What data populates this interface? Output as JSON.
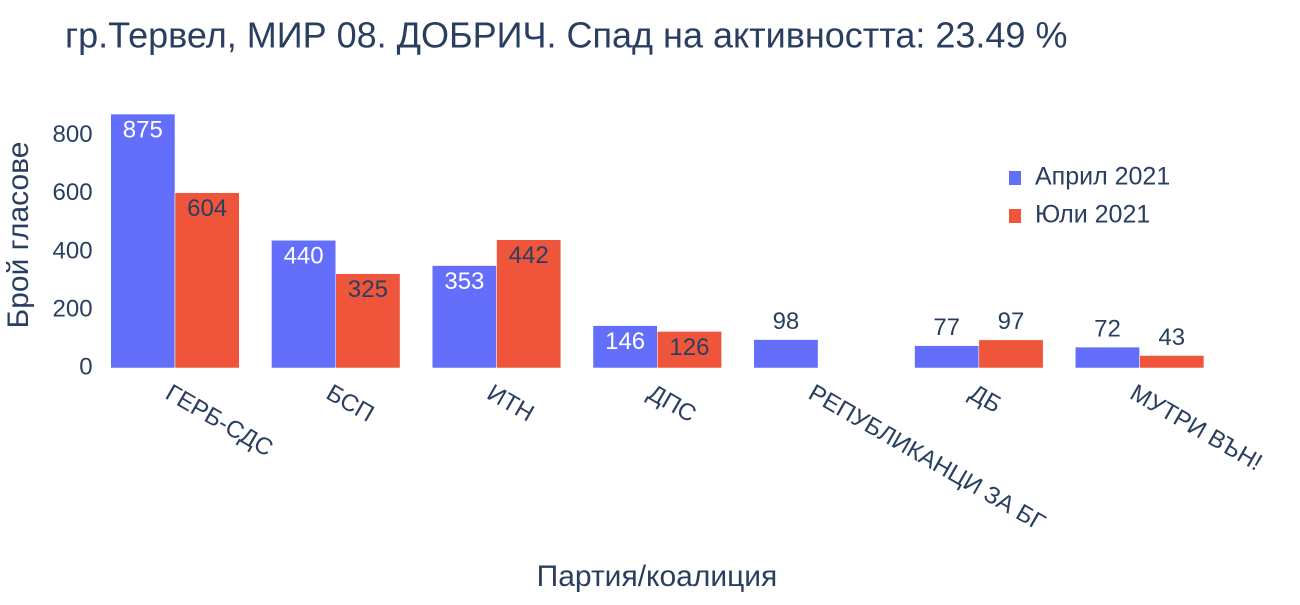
{
  "chart_data": {
    "type": "bar",
    "title": "гр.Тервел, МИР 08. ДОБРИЧ. Спад на активността: 23.49 %",
    "x_label": "Партия/коалиция",
    "y_label": "Брой гласове",
    "categories": [
      "ГЕРБ-СДС",
      "БСП",
      "ИТН",
      "ДПС",
      "РЕПУБЛИКАНЦИ ЗА БГ",
      "ДБ",
      "МУТРИ ВЪН!"
    ],
    "series": [
      {
        "name": "Април 2021",
        "color": "#636efa",
        "values": [
          875,
          440,
          353,
          146,
          98,
          77,
          72
        ]
      },
      {
        "name": "Юли 2021",
        "color": "#ef553b",
        "values": [
          604,
          325,
          442,
          126,
          null,
          97,
          43
        ]
      }
    ],
    "ylim": [
      0,
      920
    ],
    "yticks": [
      0,
      200,
      400,
      600,
      800
    ],
    "legend": "top-right"
  }
}
